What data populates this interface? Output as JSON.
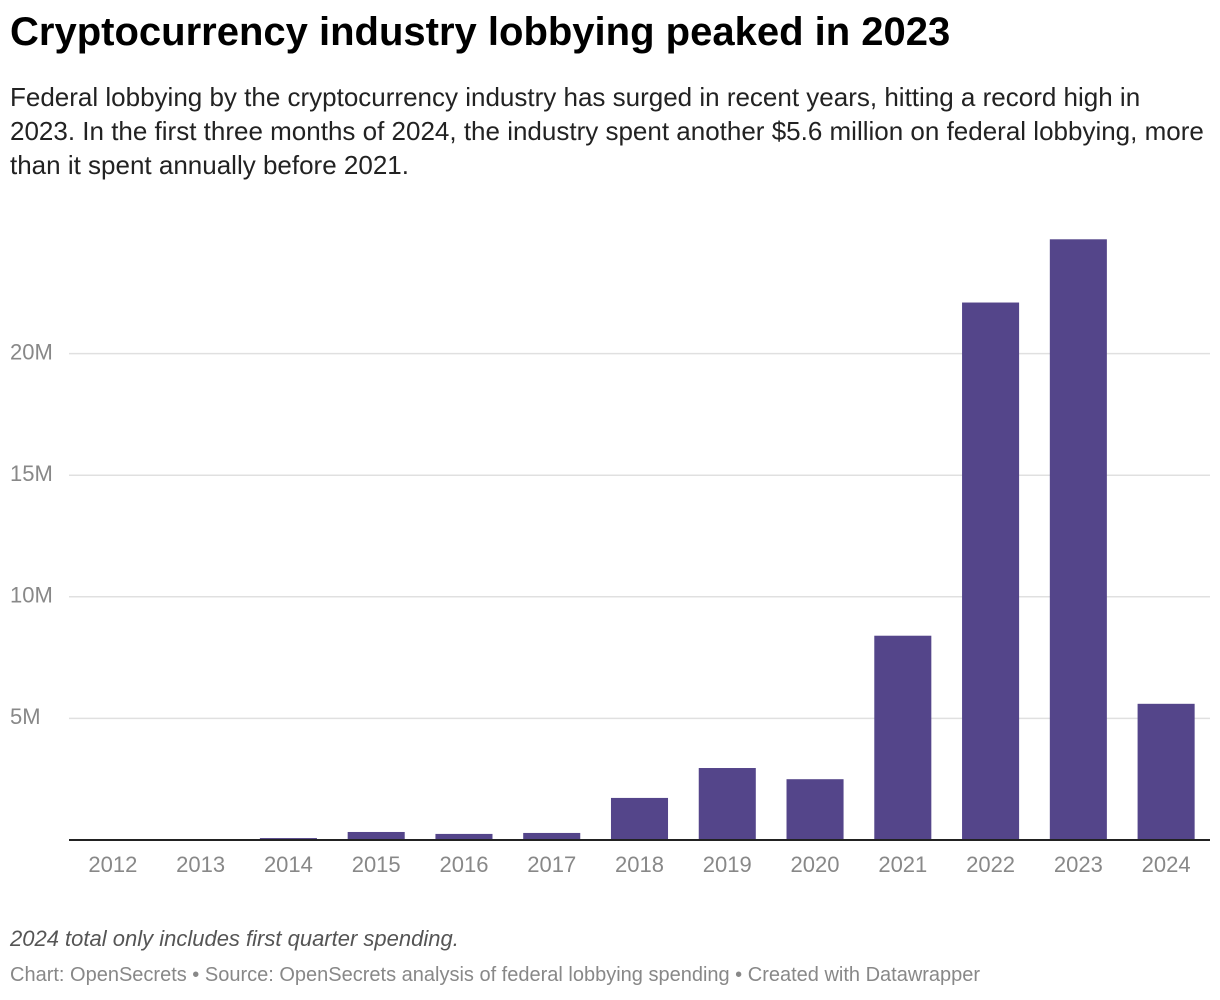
{
  "chart_data": {
    "type": "bar",
    "title": "Cryptocurrency industry lobbying peaked in 2023",
    "subtitle": "Federal lobbying by the cryptocurrency industry has surged in recent years, hitting a record high in 2023. In the first three months of 2024, the industry spent another $5.6 million on federal lobbying, more than it spent annually before 2021.",
    "categories": [
      "2012",
      "2013",
      "2014",
      "2015",
      "2016",
      "2017",
      "2018",
      "2019",
      "2020",
      "2021",
      "2022",
      "2023",
      "2024"
    ],
    "values": [
      10000,
      10000,
      80000,
      330000,
      250000,
      290000,
      1730000,
      2960000,
      2500000,
      8400000,
      22100000,
      24700000,
      5600000
    ],
    "color": "#54458a",
    "ylim": [
      0,
      25000000
    ],
    "yticks": [
      {
        "value": 5000000,
        "label": "5M"
      },
      {
        "value": 10000000,
        "label": "10M"
      },
      {
        "value": 15000000,
        "label": "15M"
      },
      {
        "value": 20000000,
        "label": "20M"
      }
    ],
    "grid": true,
    "note": "2024 total only includes first quarter spending.",
    "source": "Chart: OpenSecrets • Source: OpenSecrets analysis of federal lobbying spending • Created with Datawrapper"
  }
}
